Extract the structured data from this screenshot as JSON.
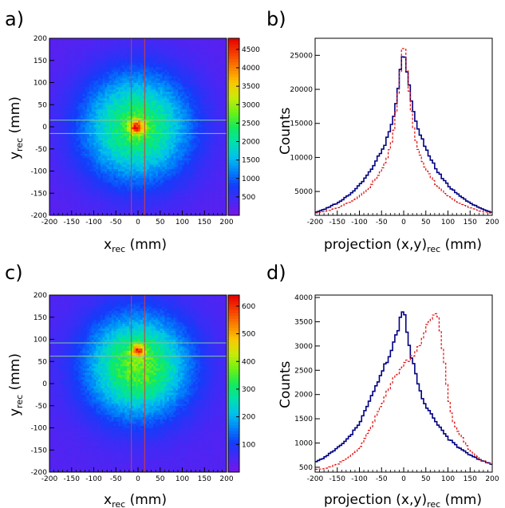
{
  "panels": [
    {
      "letter": "a)"
    },
    {
      "letter": "b)"
    },
    {
      "letter": "c)"
    },
    {
      "letter": "d)"
    }
  ],
  "chart_data": [
    {
      "type": "heatmap",
      "panel": "a)",
      "xlabel": "x",
      "xlabel_sub": "rec",
      "xlabel_unit": " (mm)",
      "ylabel": "y",
      "ylabel_sub": "rec",
      "ylabel_unit": " (mm)",
      "xlim": [
        -200,
        200
      ],
      "ylim": [
        -200,
        200
      ],
      "xticks": [
        -200,
        -150,
        -100,
        -50,
        0,
        50,
        100,
        150,
        200
      ],
      "yticks": [
        -200,
        -150,
        -100,
        -50,
        0,
        50,
        100,
        150,
        200
      ],
      "colorbar_ticks": [
        500,
        1000,
        1500,
        2000,
        2500,
        3000,
        3500,
        4000,
        4500
      ],
      "zlim": [
        0,
        4800
      ],
      "peak": {
        "x": -3,
        "y": 0,
        "value": 4700
      },
      "background": 250,
      "core_sigma": 12,
      "halo_amp": 2300,
      "halo_sigma": 85,
      "vertical_lines": [
        -15,
        15
      ],
      "vertical_line_color": "#d04040",
      "horizontal_lines": [
        -15,
        15
      ],
      "horizontal_line_color": "#7fc7a0"
    },
    {
      "type": "line",
      "panel": "b)",
      "xlabel": "projection (x,y)",
      "xlabel_sub": "rec",
      "xlabel_unit": " (mm)",
      "ylabel": "Counts",
      "xlim": [
        -200,
        200
      ],
      "ylim": [
        1500,
        27500
      ],
      "xticks": [
        -200,
        -150,
        -100,
        -50,
        0,
        50,
        100,
        150,
        200
      ],
      "yticks": [
        5000,
        10000,
        15000,
        20000,
        25000
      ],
      "series": [
        {
          "color": "#000080",
          "style": "solid",
          "x": [
            -200,
            -175,
            -150,
            -125,
            -100,
            -75,
            -50,
            -40,
            -30,
            -20,
            -10,
            0,
            10,
            20,
            30,
            40,
            50,
            75,
            100,
            125,
            150,
            175,
            200
          ],
          "values": [
            1900,
            2500,
            3300,
            4400,
            5900,
            8000,
            10900,
            12300,
            14300,
            16600,
            21400,
            26000,
            21700,
            17200,
            14700,
            12900,
            11300,
            8100,
            5900,
            4400,
            3300,
            2500,
            1900
          ]
        },
        {
          "color": "#e01010",
          "style": "dashed",
          "x": [
            -200,
            -175,
            -150,
            -125,
            -100,
            -75,
            -50,
            -40,
            -30,
            -20,
            -10,
            0,
            10,
            20,
            30,
            40,
            50,
            75,
            100,
            125,
            150,
            175,
            200
          ],
          "values": [
            1800,
            2100,
            2600,
            3300,
            4300,
            5800,
            8200,
            9500,
            11500,
            14900,
            21000,
            27200,
            21300,
            15400,
            11800,
            9700,
            8300,
            5800,
            4300,
            3300,
            2600,
            2100,
            1800
          ]
        }
      ]
    },
    {
      "type": "heatmap",
      "panel": "c)",
      "xlabel": "x",
      "xlabel_sub": "rec",
      "xlabel_unit": " (mm)",
      "ylabel": "y",
      "ylabel_sub": "rec",
      "ylabel_unit": " (mm)",
      "xlim": [
        -200,
        200
      ],
      "ylim": [
        -200,
        200
      ],
      "xticks": [
        -200,
        -150,
        -100,
        -50,
        0,
        50,
        100,
        150,
        200
      ],
      "yticks": [
        -200,
        -150,
        -100,
        -50,
        0,
        50,
        100,
        150,
        200
      ],
      "colorbar_ticks": [
        100,
        200,
        300,
        400,
        500,
        600
      ],
      "zlim": [
        0,
        640
      ],
      "peak": {
        "x": 0,
        "y": 75,
        "value": 630
      },
      "background": 40,
      "core_sigma": 10,
      "halo_amp": 330,
      "halo_sigma": 80,
      "halo_center_y": 40,
      "vertical_lines": [
        -15,
        15
      ],
      "vertical_line_color": "#d04040",
      "horizontal_lines": [
        62,
        92
      ],
      "horizontal_line_color": "#7fc7a0"
    },
    {
      "type": "line",
      "panel": "d)",
      "xlabel": "projection (x,y)",
      "xlabel_sub": "rec",
      "xlabel_unit": " (mm)",
      "ylabel": "Counts",
      "xlim": [
        -200,
        200
      ],
      "ylim": [
        400,
        4050
      ],
      "xticks": [
        -200,
        -150,
        -100,
        -50,
        0,
        50,
        100,
        150,
        200
      ],
      "yticks": [
        500,
        1000,
        1500,
        2000,
        2500,
        3000,
        3500,
        4000
      ],
      "series": [
        {
          "color": "#000080",
          "style": "solid",
          "x": [
            -200,
            -175,
            -150,
            -125,
            -100,
            -75,
            -50,
            -40,
            -30,
            -20,
            -10,
            0,
            10,
            20,
            30,
            40,
            50,
            75,
            100,
            125,
            150,
            175,
            200
          ],
          "values": [
            600,
            720,
            900,
            1100,
            1400,
            1900,
            2400,
            2650,
            2850,
            3100,
            3450,
            3850,
            3050,
            2700,
            2300,
            2000,
            1750,
            1400,
            1100,
            900,
            750,
            650,
            550
          ]
        },
        {
          "color": "#e01010",
          "style": "dashed",
          "x": [
            -200,
            -175,
            -150,
            -125,
            -100,
            -75,
            -50,
            -25,
            0,
            20,
            40,
            55,
            65,
            75,
            80,
            90,
            100,
            110,
            125,
            150,
            175,
            200
          ],
          "values": [
            450,
            480,
            560,
            700,
            900,
            1300,
            1800,
            2300,
            2600,
            2800,
            3100,
            3450,
            3650,
            3700,
            3500,
            2800,
            2000,
            1500,
            1200,
            850,
            650,
            550
          ]
        }
      ]
    }
  ]
}
